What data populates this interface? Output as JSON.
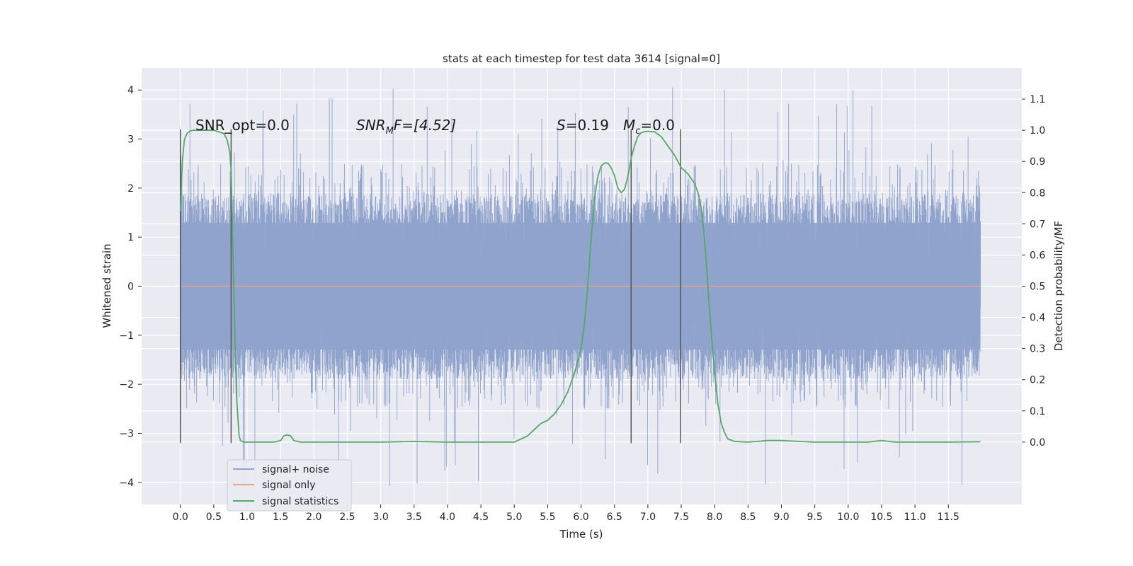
{
  "chart_data": {
    "type": "line",
    "title": "stats at each timestep for test data 3614 [signal=0]",
    "xlabel": "Time (s)",
    "ylabel_left": "Whitened strain",
    "ylabel_right": "Detection probability/MF",
    "xlim": [
      -0.58,
      12.6
    ],
    "ylim_left": [
      -4.45,
      4.45
    ],
    "ylim_right": [
      -0.2,
      1.2
    ],
    "x_ticks": [
      0.0,
      0.5,
      1.0,
      1.5,
      2.0,
      2.5,
      3.0,
      3.5,
      4.0,
      4.5,
      5.0,
      5.5,
      6.0,
      6.5,
      7.0,
      7.5,
      8.0,
      8.5,
      9.0,
      9.5,
      10.0,
      10.5,
      11.0,
      11.5
    ],
    "x_tick_labels": [
      "0.0",
      "0.5",
      "1.0",
      "1.5",
      "2.0",
      "2.5",
      "3.0",
      "3.5",
      "4.0",
      "4.5",
      "5.0",
      "5.5",
      "6.0",
      "6.5",
      "7.0",
      "7.5",
      "8.0",
      "8.5",
      "9.0",
      "9.5",
      "10.0",
      "10.5",
      "11.0",
      "11.5"
    ],
    "y_left_ticks": [
      -4,
      -3,
      -2,
      -1,
      0,
      1,
      2,
      3,
      4
    ],
    "y_left_tick_labels": [
      "−4",
      "−3",
      "−2",
      "−1",
      "0",
      "1",
      "2",
      "3",
      "4"
    ],
    "y_right_ticks": [
      0.0,
      0.1,
      0.2,
      0.3,
      0.4,
      0.5,
      0.6,
      0.7,
      0.8,
      0.9,
      1.0,
      1.1
    ],
    "y_right_tick_labels": [
      "0.0",
      "0.1",
      "0.2",
      "0.3",
      "0.4",
      "0.5",
      "0.6",
      "0.7",
      "0.8",
      "0.9",
      "1.0",
      "1.1"
    ],
    "grid": true,
    "legend_position": "lower-left",
    "annotations": {
      "snr_opt": "SNR_opt=0.0",
      "snr_mf_main": "SNR",
      "snr_mf_sub": "M",
      "snr_mf_rest": "F=[4.52]",
      "s_main": "S",
      "s_rest": "=0.19",
      "mc_main": "M",
      "mc_sub": "c",
      "mc_rest": "=0.0"
    },
    "vertical_lines_x": [
      0.0,
      0.76,
      6.75,
      7.49
    ],
    "vertical_lines_range_left": [
      -3.2,
      3.2
    ],
    "series": [
      {
        "name": "signal+ noise",
        "color": "#8fa3cc",
        "x_range": [
          0.0,
          11.98
        ],
        "typical_band": [
          -1.9,
          1.9
        ],
        "peak_range": [
          -4.05,
          4.08
        ]
      },
      {
        "name": "signal only",
        "color": "#e6a488",
        "x": [
          0.0,
          11.98
        ],
        "y": [
          0.0,
          0.0
        ]
      },
      {
        "name": "signal statistics",
        "color": "#55a868",
        "axis": "right",
        "x": [
          0.0,
          0.03,
          0.06,
          0.1,
          0.15,
          0.2,
          0.3,
          0.5,
          0.65,
          0.7,
          0.74,
          0.76,
          0.8,
          0.84,
          0.88,
          0.9,
          0.95,
          1.0,
          1.2,
          1.4,
          1.5,
          1.55,
          1.6,
          1.65,
          1.7,
          1.8,
          2.0,
          2.5,
          3.0,
          3.5,
          4.0,
          4.5,
          5.0,
          5.2,
          5.3,
          5.4,
          5.5,
          5.6,
          5.7,
          5.8,
          5.9,
          6.0,
          6.05,
          6.1,
          6.15,
          6.2,
          6.25,
          6.3,
          6.35,
          6.4,
          6.45,
          6.5,
          6.55,
          6.6,
          6.65,
          6.7,
          6.75,
          6.8,
          6.85,
          6.9,
          6.95,
          7.0,
          7.1,
          7.2,
          7.3,
          7.4,
          7.5,
          7.55,
          7.6,
          7.65,
          7.7,
          7.75,
          7.8,
          7.85,
          7.9,
          7.95,
          8.0,
          8.05,
          8.1,
          8.15,
          8.2,
          8.3,
          8.5,
          8.8,
          9.0,
          9.5,
          10.0,
          10.3,
          10.5,
          10.7,
          11.0,
          11.5,
          11.98
        ],
        "y": [
          0.74,
          0.9,
          0.97,
          0.99,
          0.998,
          1.0,
          1.0,
          1.0,
          0.99,
          0.97,
          0.93,
          0.87,
          0.5,
          0.15,
          0.02,
          0.005,
          0.0,
          0.0,
          0.0,
          0.0,
          0.005,
          0.02,
          0.023,
          0.02,
          0.005,
          0.0,
          0.0,
          0.0,
          0.0,
          0.002,
          0.0,
          0.0,
          0.0,
          0.02,
          0.04,
          0.06,
          0.07,
          0.09,
          0.12,
          0.16,
          0.22,
          0.3,
          0.38,
          0.5,
          0.65,
          0.78,
          0.85,
          0.885,
          0.895,
          0.895,
          0.88,
          0.855,
          0.815,
          0.8,
          0.81,
          0.85,
          0.91,
          0.95,
          0.98,
          0.992,
          0.996,
          0.997,
          0.995,
          0.98,
          0.95,
          0.92,
          0.88,
          0.87,
          0.86,
          0.845,
          0.83,
          0.8,
          0.75,
          0.65,
          0.5,
          0.35,
          0.22,
          0.12,
          0.06,
          0.03,
          0.01,
          0.002,
          0.0,
          0.005,
          0.005,
          0.0,
          0.0,
          0.0,
          0.005,
          0.0,
          0.0,
          0.0,
          0.001
        ]
      }
    ]
  }
}
